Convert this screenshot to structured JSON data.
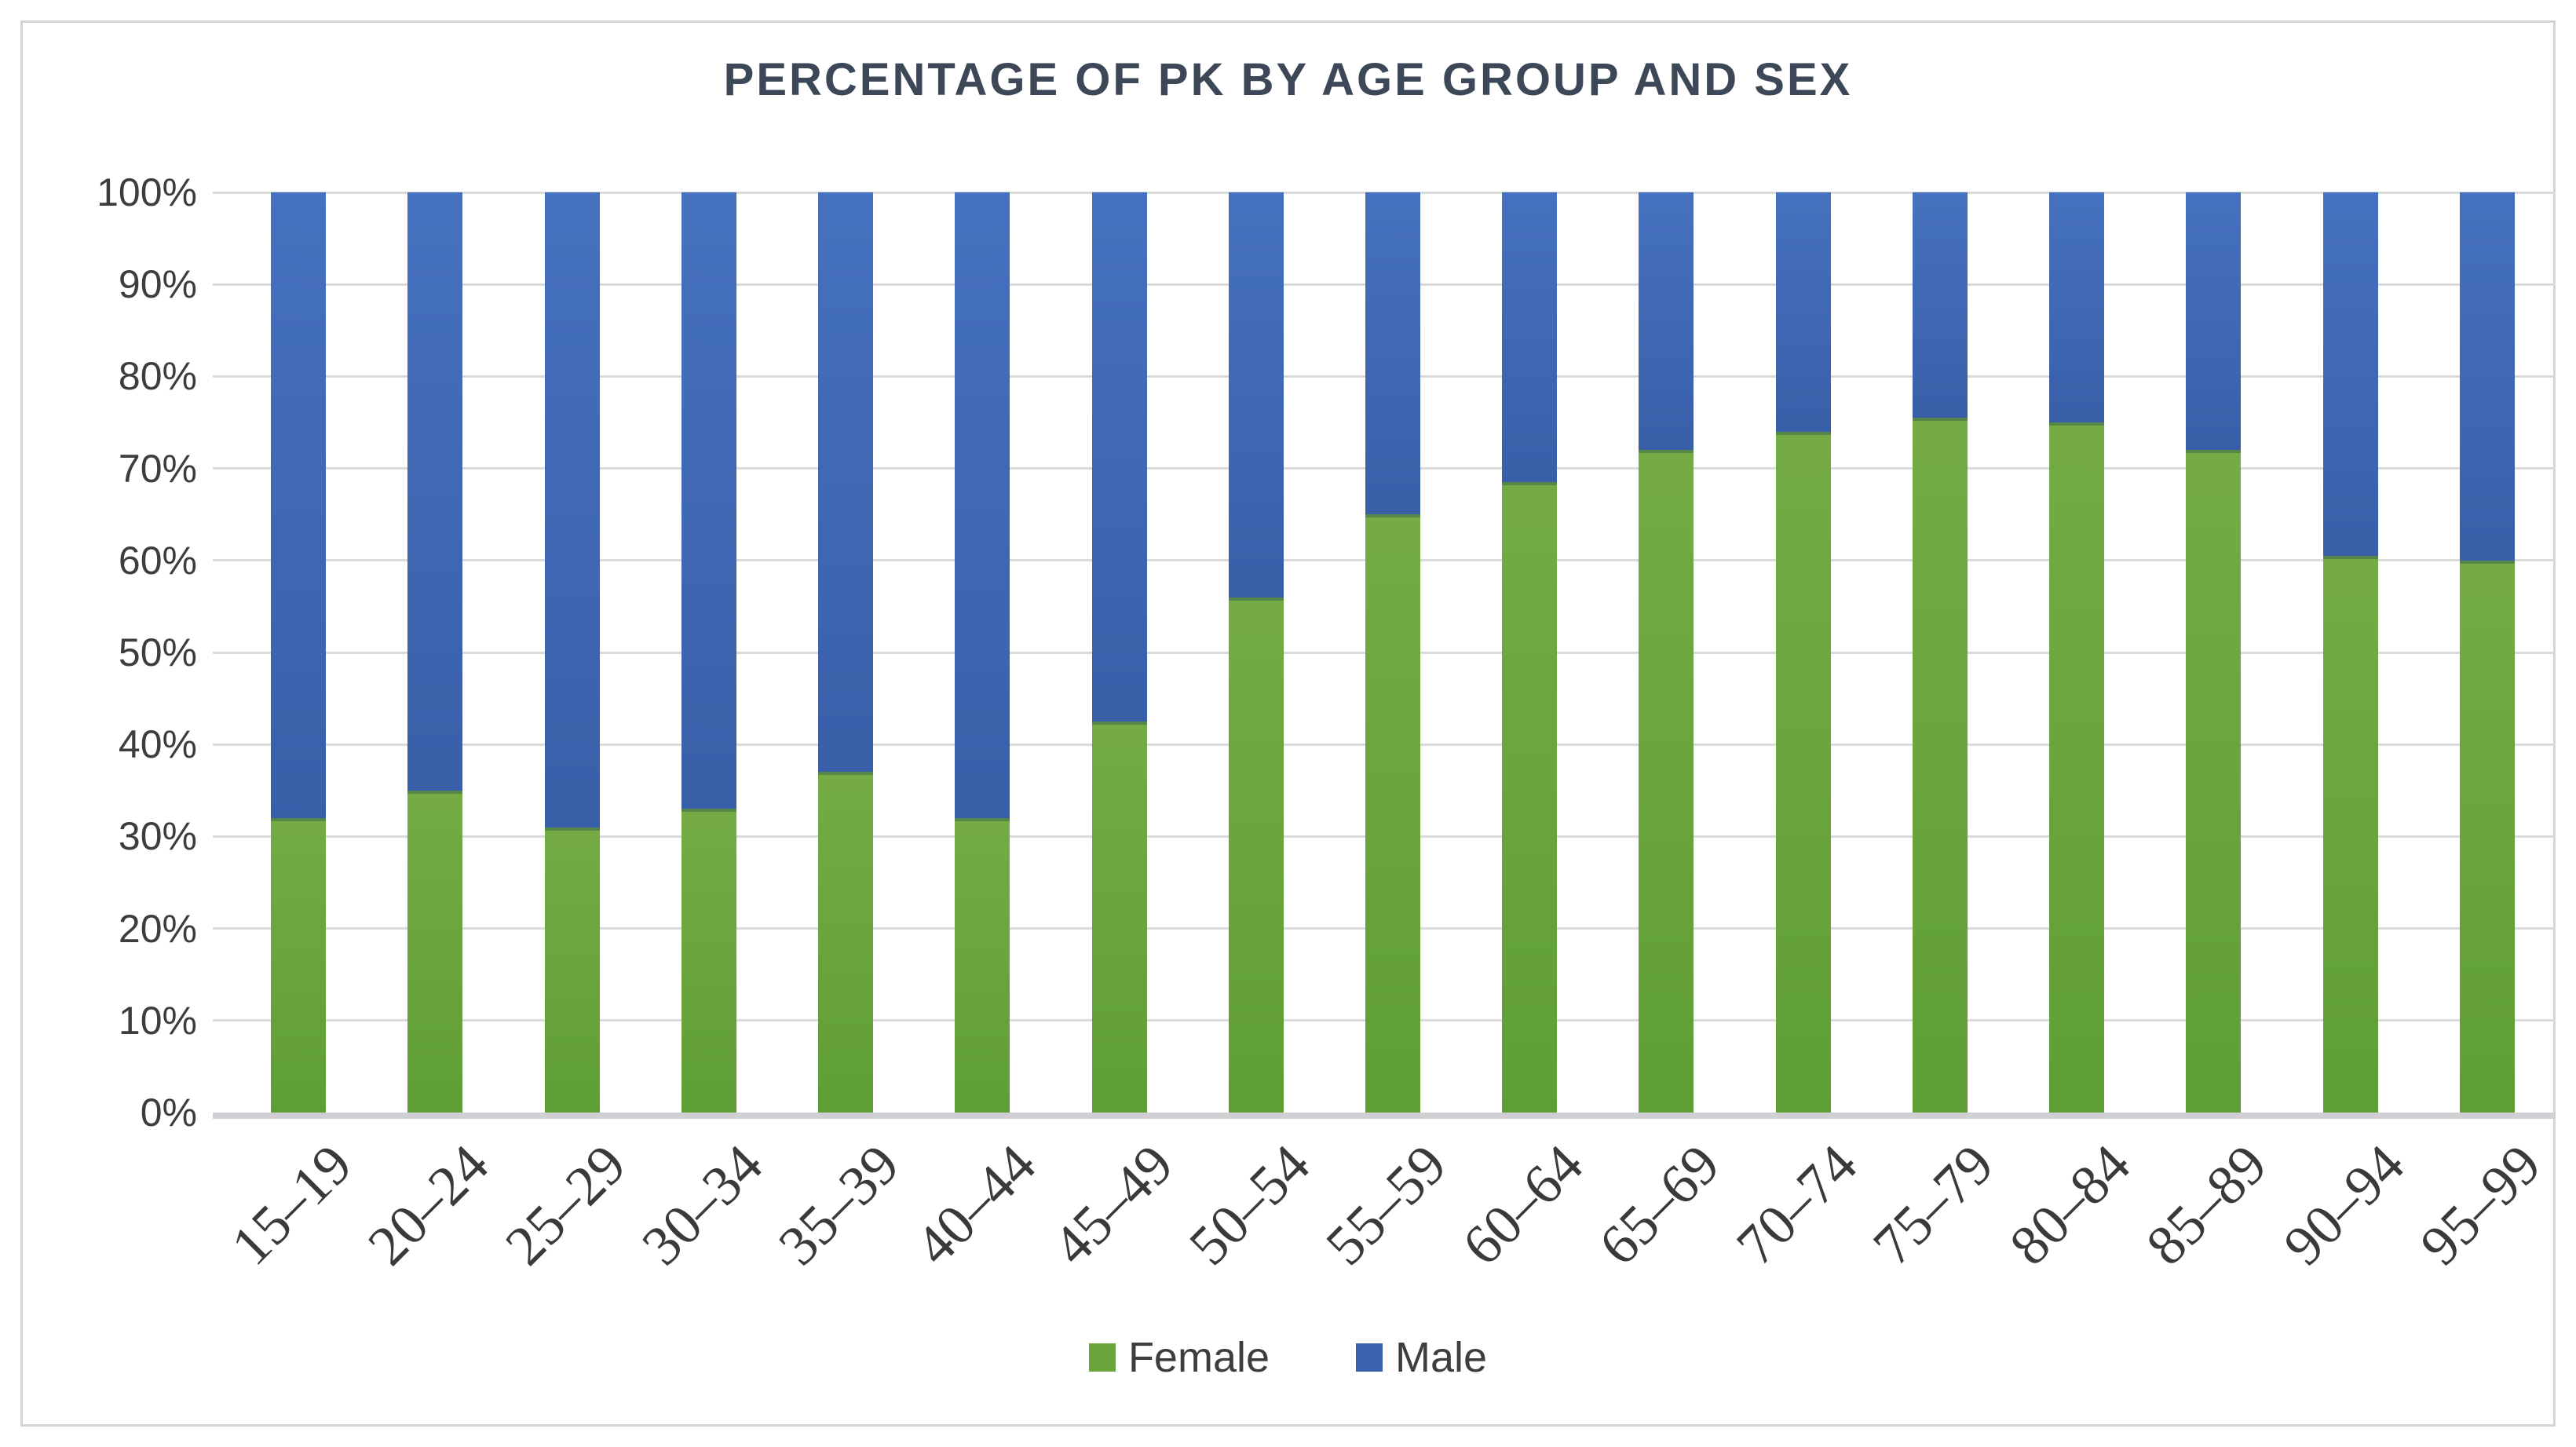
{
  "window": {
    "background_color": "#ffffff",
    "frame_border_color": "#d4d5db"
  },
  "chart_data": {
    "type": "bar",
    "variant": "stacked-100-percent-column",
    "title": "PERCENTAGE OF PK BY AGE GROUP AND SEX",
    "categories": [
      "15–19",
      "20–24",
      "25–29",
      "30–34",
      "35–39",
      "40–44",
      "45–49",
      "50–54",
      "55–59",
      "60–64",
      "65–69",
      "70–74",
      "75–79",
      "80–84",
      "85–89",
      "90–94",
      "95–99"
    ],
    "series": [
      {
        "name": "Female",
        "color": "#6ba53c",
        "values": [
          32,
          35,
          31,
          33,
          37,
          32,
          42.5,
          56,
          65,
          68.5,
          72,
          74,
          75.5,
          75,
          72,
          60.5,
          60
        ]
      },
      {
        "name": "Male",
        "color": "#3b61ad",
        "values": [
          68,
          65,
          69,
          67,
          63,
          68,
          57.5,
          44,
          35,
          31.5,
          28,
          26,
          24.5,
          25,
          28,
          39.5,
          40
        ]
      }
    ],
    "xlabel": "",
    "ylabel": "",
    "ylim": [
      0,
      100
    ],
    "y_ticks": [
      "0%",
      "10%",
      "20%",
      "30%",
      "40%",
      "50%",
      "60%",
      "70%",
      "80%",
      "90%",
      "100%"
    ],
    "grid": true,
    "gridline_color": "#dadada",
    "axis_line_color": "#cfcfd4",
    "title_color": "#3c4858",
    "axis_text_color": "#3d3d3d",
    "legend_position": "bottom",
    "x_label_rotation_degrees": -45
  }
}
